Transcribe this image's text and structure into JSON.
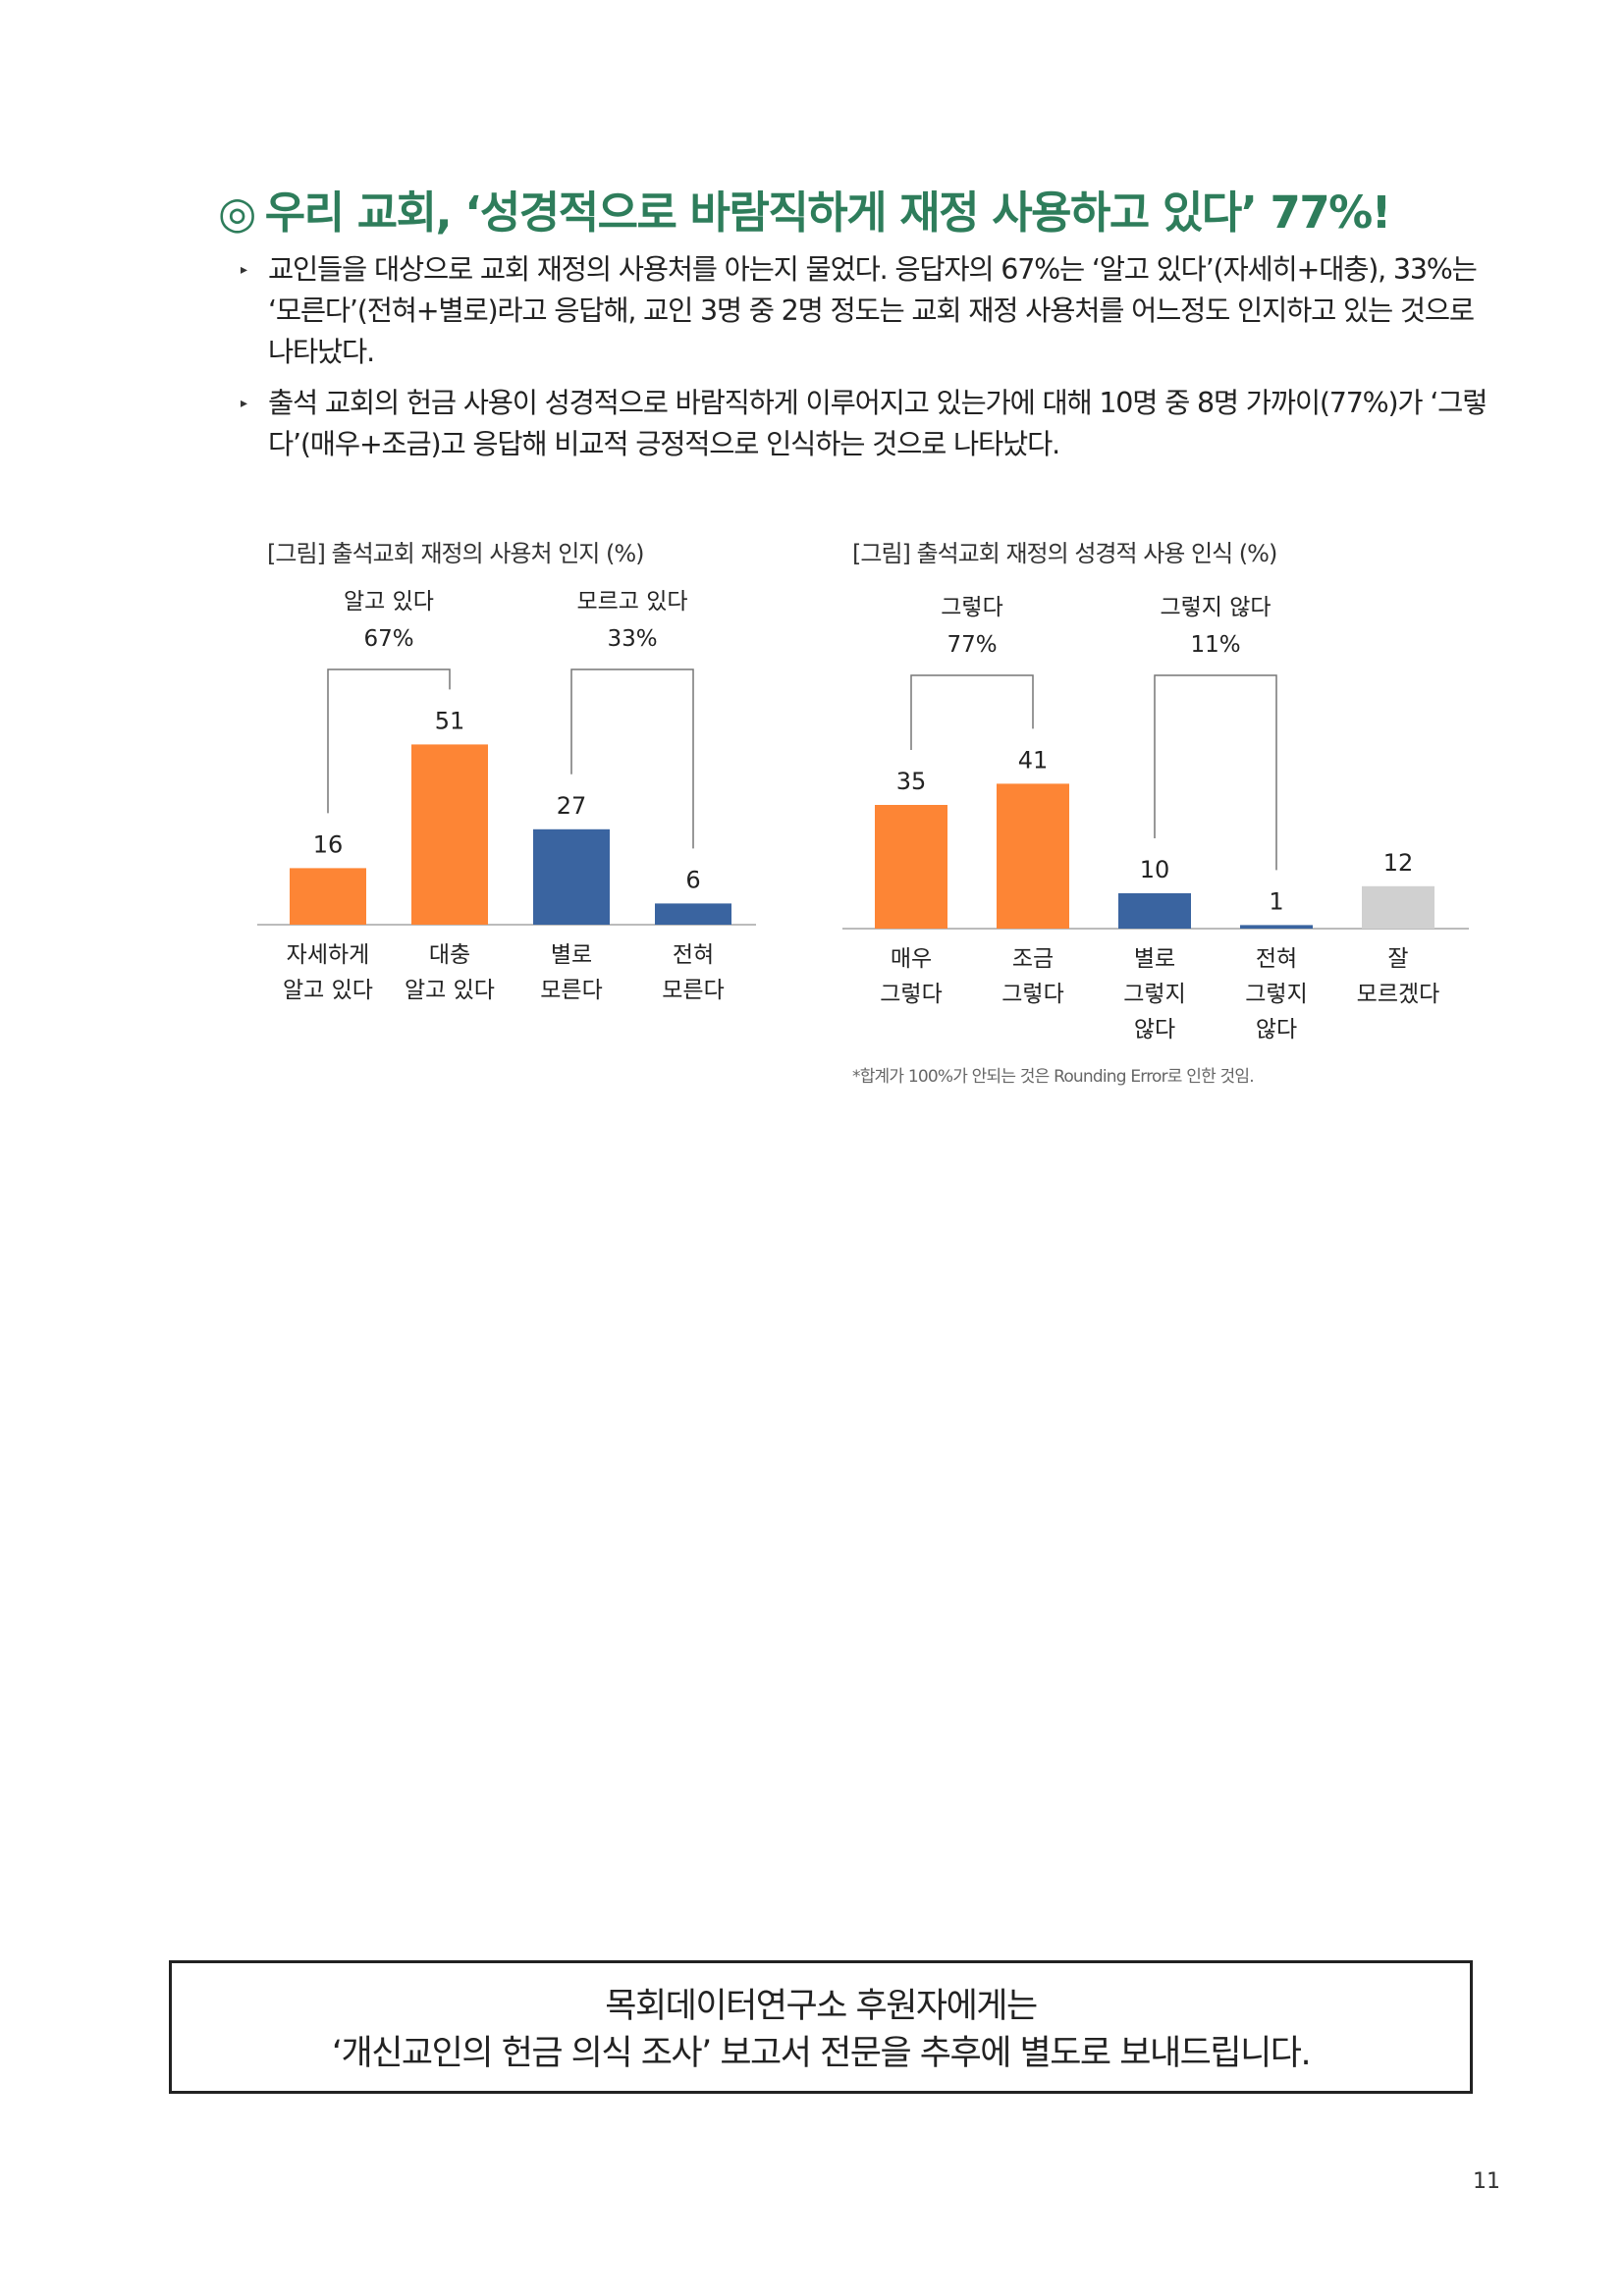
{
  "page": {
    "title_mark": "◎",
    "title": "우리 교회, ‘성경적으로 바람직하게 재정 사용하고 있다’ 77%!",
    "bullet_marker": "▸",
    "bullets": [
      "교인들을 대상으로 교회 재정의 사용처를 아는지 물었다. 응답자의 67%는 ‘알고 있다’(자세히+대충), 33%는 ‘모른다’(전혀+별로)라고 응답해, 교인 3명 중 2명 정도는 교회 재정 사용처를 어느정도 인지하고 있는 것으로 나타났다.",
      "출석 교회의 헌금 사용이 성경적으로 바람직하게 이루어지고 있는가에 대해 10명 중 8명 가까이(77%)가 ‘그렇다’(매우+조금)고 응답해 비교적 긍정적으로 인식하는 것으로 나타났다."
    ],
    "footnote": "*합계가 100%가 안되는 것은 Rounding Error로 인한 것임.",
    "notice_line1": "목회데이터연구소 후원자에게는",
    "notice_line2": "‘개신교인의 헌금 의식 조사’ 보고서 전문을 추후에 별도로 보내드립니다.",
    "page_number": "11"
  },
  "chart_data": [
    {
      "type": "bar",
      "title": "[그림] 출석교회 재정의 사용처 인지 (%)",
      "categories": [
        [
          "자세하게",
          "알고 있다"
        ],
        [
          "대충",
          "알고 있다"
        ],
        [
          "별로",
          "모른다"
        ],
        [
          "전혀",
          "모른다"
        ]
      ],
      "values": [
        16,
        51,
        27,
        6
      ],
      "colors": [
        "#fd8535",
        "#fd8535",
        "#3a64a0",
        "#3a64a0"
      ],
      "groups": [
        {
          "label": "알고 있다",
          "value": "67%",
          "from": 0,
          "to": 1
        },
        {
          "label": "모르고 있다",
          "value": "33%",
          "from": 2,
          "to": 3
        }
      ],
      "ylim": [
        0,
        60
      ]
    },
    {
      "type": "bar",
      "title": "[그림] 출석교회 재정의 성경적 사용 인식 (%)",
      "categories": [
        [
          "매우",
          "그렇다"
        ],
        [
          "조금",
          "그렇다"
        ],
        [
          "별로",
          "그렇지",
          "않다"
        ],
        [
          "전혀",
          "그렇지",
          "않다"
        ],
        [
          "잘",
          "모르겠다"
        ]
      ],
      "values": [
        35,
        41,
        10,
        1,
        12
      ],
      "colors": [
        "#fd8535",
        "#fd8535",
        "#3a64a0",
        "#3a64a0",
        "#d0d0d0"
      ],
      "groups": [
        {
          "label": "그렇다",
          "value": "77%",
          "from": 0,
          "to": 1
        },
        {
          "label": "그렇지 않다",
          "value": "11%",
          "from": 2,
          "to": 3
        }
      ],
      "ylim": [
        0,
        60
      ]
    }
  ]
}
